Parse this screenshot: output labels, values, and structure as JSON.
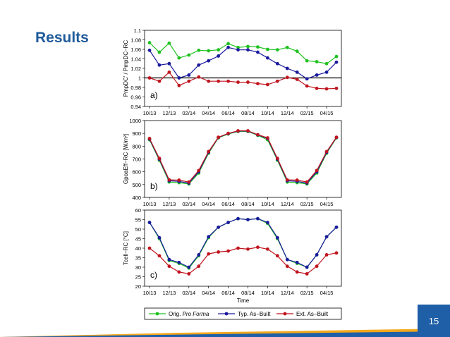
{
  "slide": {
    "title": "Results",
    "page_number": "15"
  },
  "colors": {
    "orig": "#1fc21f",
    "typ": "#1a1a9e",
    "ext": "#c0141e"
  },
  "legend": {
    "orig_label": "Orig. Pro Forma",
    "typ_label": "Typ. As−Built",
    "ext_label": "Ext. As−Built"
  },
  "chart_data": [
    {
      "type": "line",
      "panel_label": "a)",
      "ylabel": "PmpDC' / PmpDC−RC",
      "xlabel": "",
      "ylim": [
        0.94,
        1.1
      ],
      "yticks": [
        "0.94",
        "0.96",
        "0.98",
        "1",
        "1.02",
        "1.04",
        "1.06",
        "1.08",
        "1.1"
      ],
      "reference_line": 1,
      "categories": [
        "10/13",
        "11/13",
        "12/13",
        "01/14",
        "02/14",
        "03/14",
        "04/14",
        "05/14",
        "06/14",
        "07/14",
        "08/14",
        "09/14",
        "10/14",
        "11/14",
        "12/14",
        "01/15",
        "02/15",
        "03/15",
        "04/15",
        "05/15"
      ],
      "xtick_labels": [
        "10/13",
        "12/13",
        "02/14",
        "04/14",
        "06/14",
        "08/14",
        "10/14",
        "12/14",
        "02/15",
        "04/15"
      ],
      "series": [
        {
          "name": "Orig. Pro Forma",
          "color_key": "orig",
          "values": [
            1.074,
            1.054,
            1.073,
            1.042,
            1.048,
            1.058,
            1.057,
            1.059,
            1.072,
            1.064,
            1.066,
            1.065,
            1.06,
            1.059,
            1.064,
            1.056,
            1.036,
            1.034,
            1.03,
            1.045
          ]
        },
        {
          "name": "Typ. As−Built",
          "color_key": "typ",
          "values": [
            1.058,
            1.027,
            1.03,
            1.0,
            1.006,
            1.027,
            1.036,
            1.046,
            1.064,
            1.059,
            1.059,
            1.054,
            1.042,
            1.03,
            1.02,
            1.012,
            0.998,
            1.006,
            1.012,
            1.033
          ]
        },
        {
          "name": "Ext. As−Built",
          "color_key": "ext",
          "values": [
            1.0,
            0.993,
            1.012,
            0.984,
            0.993,
            1.002,
            0.993,
            0.993,
            0.993,
            0.991,
            0.991,
            0.988,
            0.986,
            0.993,
            1.001,
            0.997,
            0.983,
            0.978,
            0.977,
            0.978
          ]
        }
      ]
    },
    {
      "type": "line",
      "panel_label": "b)",
      "ylabel": "GpoaEff−RC [W/m²]",
      "xlabel": "",
      "ylim": [
        400,
        1000
      ],
      "yticks": [
        "400",
        "500",
        "600",
        "700",
        "800",
        "900",
        "1000"
      ],
      "categories": [
        "10/13",
        "11/13",
        "12/13",
        "01/14",
        "02/14",
        "03/14",
        "04/14",
        "05/14",
        "06/14",
        "07/14",
        "08/14",
        "09/14",
        "10/14",
        "11/14",
        "12/14",
        "01/15",
        "02/15",
        "03/15",
        "04/15",
        "05/15"
      ],
      "xtick_labels": [
        "10/13",
        "12/13",
        "02/14",
        "04/14",
        "06/14",
        "08/14",
        "10/14",
        "12/14",
        "02/15",
        "04/15"
      ],
      "series": [
        {
          "name": "Orig. Pro Forma",
          "color_key": "orig",
          "values": [
            850,
            690,
            520,
            515,
            505,
            590,
            745,
            865,
            895,
            915,
            915,
            885,
            850,
            690,
            520,
            515,
            505,
            590,
            745,
            865
          ]
        },
        {
          "name": "Typ. As−Built",
          "color_key": "typ",
          "values": [
            855,
            698,
            530,
            525,
            512,
            600,
            752,
            868,
            898,
            918,
            918,
            888,
            860,
            698,
            530,
            525,
            512,
            600,
            752,
            868
          ]
        },
        {
          "name": "Ext. As−Built",
          "color_key": "ext",
          "values": [
            860,
            705,
            537,
            535,
            520,
            610,
            758,
            870,
            900,
            920,
            920,
            890,
            865,
            705,
            537,
            535,
            520,
            610,
            758,
            870
          ]
        }
      ]
    },
    {
      "type": "line",
      "panel_label": "c)",
      "ylabel": "Tcell−RC [°C]",
      "xlabel": "Time",
      "ylim": [
        20,
        60
      ],
      "yticks": [
        "20",
        "25",
        "30",
        "35",
        "40",
        "45",
        "50",
        "55",
        "60"
      ],
      "categories": [
        "10/13",
        "11/13",
        "12/13",
        "01/14",
        "02/14",
        "03/14",
        "04/14",
        "05/14",
        "06/14",
        "07/14",
        "08/14",
        "09/14",
        "10/14",
        "11/14",
        "12/14",
        "01/15",
        "02/15",
        "03/15",
        "04/15",
        "05/15"
      ],
      "xtick_labels": [
        "10/13",
        "12/13",
        "02/14",
        "04/14",
        "06/14",
        "08/14",
        "10/14",
        "12/14",
        "02/15",
        "04/15"
      ],
      "series": [
        {
          "name": "Orig. Pro Forma",
          "color_key": "orig",
          "values": [
            53.5,
            45,
            33.5,
            32,
            29.5,
            36,
            45.5,
            51,
            53.5,
            55.5,
            55,
            55.5,
            53,
            45,
            34,
            32,
            30,
            36.5,
            46,
            51
          ]
        },
        {
          "name": "Typ. As−Built",
          "color_key": "typ",
          "values": [
            53.5,
            45.5,
            34,
            32.5,
            30,
            36.5,
            46,
            51,
            53.5,
            55.5,
            55,
            55.5,
            53.5,
            45.5,
            34,
            32.5,
            30,
            36.5,
            46,
            51
          ]
        },
        {
          "name": "Ext. As−Built",
          "color_key": "ext",
          "values": [
            40,
            36,
            30.5,
            27.5,
            26.5,
            30.5,
            37,
            38,
            38.5,
            40,
            39.5,
            40.5,
            39.5,
            36,
            30.5,
            27.5,
            26.5,
            30.5,
            36.5,
            37.5
          ]
        }
      ]
    }
  ]
}
